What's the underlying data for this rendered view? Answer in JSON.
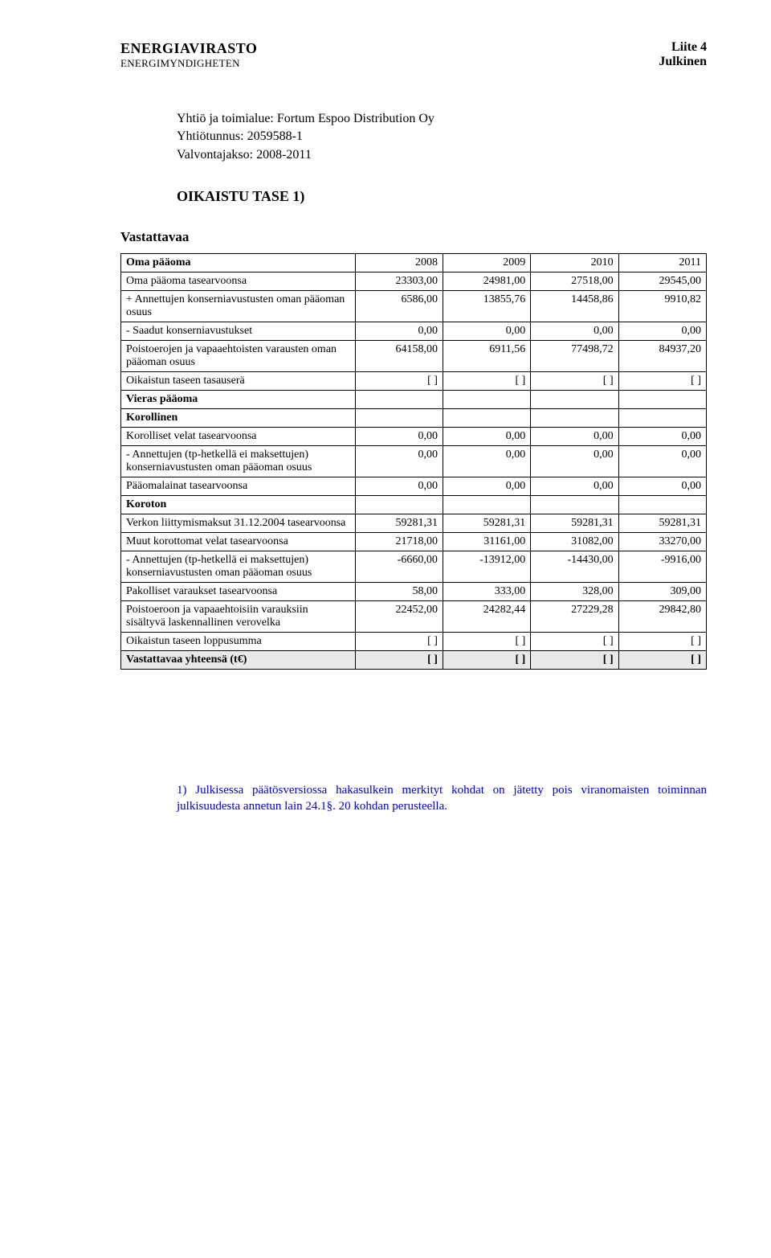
{
  "header": {
    "org_main": "ENERGIAVIRASTO",
    "org_sub": "ENERGIMYNDIGHETEN",
    "attachment": "Liite 4",
    "attachment_sub": "Julkinen"
  },
  "meta": {
    "company_line": "Yhtiö ja toimialue: Fortum Espoo Distribution Oy",
    "id_line": "Yhtiötunnus: 2059588-1",
    "period_line": "Valvontajakso: 2008-2011"
  },
  "section_title": "OIKAISTU TASE 1)",
  "subsection_title": "Vastattavaa",
  "table": {
    "head_label": "Oma pääoma",
    "years": [
      "2008",
      "2009",
      "2010",
      "2011"
    ],
    "rows": [
      {
        "label": "Oma pääoma tasearvoonsa",
        "vals": [
          "23303,00",
          "24981,00",
          "27518,00",
          "29545,00"
        ],
        "bold": false
      },
      {
        "label": "+ Annettujen konserniavustusten oman pääoman osuus",
        "vals": [
          "6586,00",
          "13855,76",
          "14458,86",
          "9910,82"
        ],
        "bold": false
      },
      {
        "label": "- Saadut konserniavustukset",
        "vals": [
          "0,00",
          "0,00",
          "0,00",
          "0,00"
        ],
        "bold": false
      },
      {
        "label": "Poistoerojen ja vapaaehtoisten varausten oman pääoman osuus",
        "vals": [
          "64158,00",
          "6911,56",
          "77498,72",
          "84937,20"
        ],
        "bold": false
      },
      {
        "label": "Oikaistun taseen tasauserä",
        "vals": [
          "[ ]",
          "[ ]",
          "[ ]",
          "[ ]"
        ],
        "bold": false
      },
      {
        "label": "Vieras pääoma",
        "vals": [
          "",
          "",
          "",
          ""
        ],
        "bold": true
      },
      {
        "label": "Korollinen",
        "vals": [
          "",
          "",
          "",
          ""
        ],
        "bold": true
      },
      {
        "label": "Korolliset velat tasearvoonsa",
        "vals": [
          "0,00",
          "0,00",
          "0,00",
          "0,00"
        ],
        "bold": false
      },
      {
        "label": "- Annettujen (tp-hetkellä ei maksettujen) konserniavustusten oman pääoman osuus",
        "vals": [
          "0,00",
          "0,00",
          "0,00",
          "0,00"
        ],
        "bold": false
      },
      {
        "label": "Pääomalainat tasearvoonsa",
        "vals": [
          "0,00",
          "0,00",
          "0,00",
          "0,00"
        ],
        "bold": false
      },
      {
        "label": "Koroton",
        "vals": [
          "",
          "",
          "",
          ""
        ],
        "bold": true
      },
      {
        "label": "Verkon liittymismaksut 31.12.2004 tasearvoonsa",
        "vals": [
          "59281,31",
          "59281,31",
          "59281,31",
          "59281,31"
        ],
        "bold": false
      },
      {
        "label": "Muut korottomat velat tasearvoonsa",
        "vals": [
          "21718,00",
          "31161,00",
          "31082,00",
          "33270,00"
        ],
        "bold": false
      },
      {
        "label": "- Annettujen (tp-hetkellä ei maksettujen) konserniavustusten oman pääoman osuus",
        "vals": [
          "-6660,00",
          "-13912,00",
          "-14430,00",
          "-9916,00"
        ],
        "bold": false
      },
      {
        "label": "Pakolliset varaukset tasearvoonsa",
        "vals": [
          "58,00",
          "333,00",
          "328,00",
          "309,00"
        ],
        "bold": false
      },
      {
        "label": "Poistoeroon ja vapaaehtoisiin varauksiin sisältyvä laskennallinen verovelka",
        "vals": [
          "22452,00",
          "24282,44",
          "27229,28",
          "29842,80"
        ],
        "bold": false
      },
      {
        "label": "Oikaistun taseen loppusumma",
        "vals": [
          "[ ]",
          "[ ]",
          "[ ]",
          "[ ]"
        ],
        "bold": false
      }
    ],
    "total": {
      "label": "Vastattavaa yhteensä (t€)",
      "vals": [
        "[ ]",
        "[ ]",
        "[ ]",
        "[ ]"
      ]
    }
  },
  "footnote": "1) Julkisessa päätösversiossa hakasulkein merkityt kohdat on jätetty pois viranomaisten toiminnan julkisuudesta annetun lain 24.1§. 20 kohdan perusteella.",
  "colors": {
    "text": "#000000",
    "footnote": "#0000cc",
    "total_bg": "#e8e8e8",
    "border": "#000000",
    "background": "#ffffff"
  },
  "col_widths_pct": [
    40,
    15,
    15,
    15,
    15
  ]
}
